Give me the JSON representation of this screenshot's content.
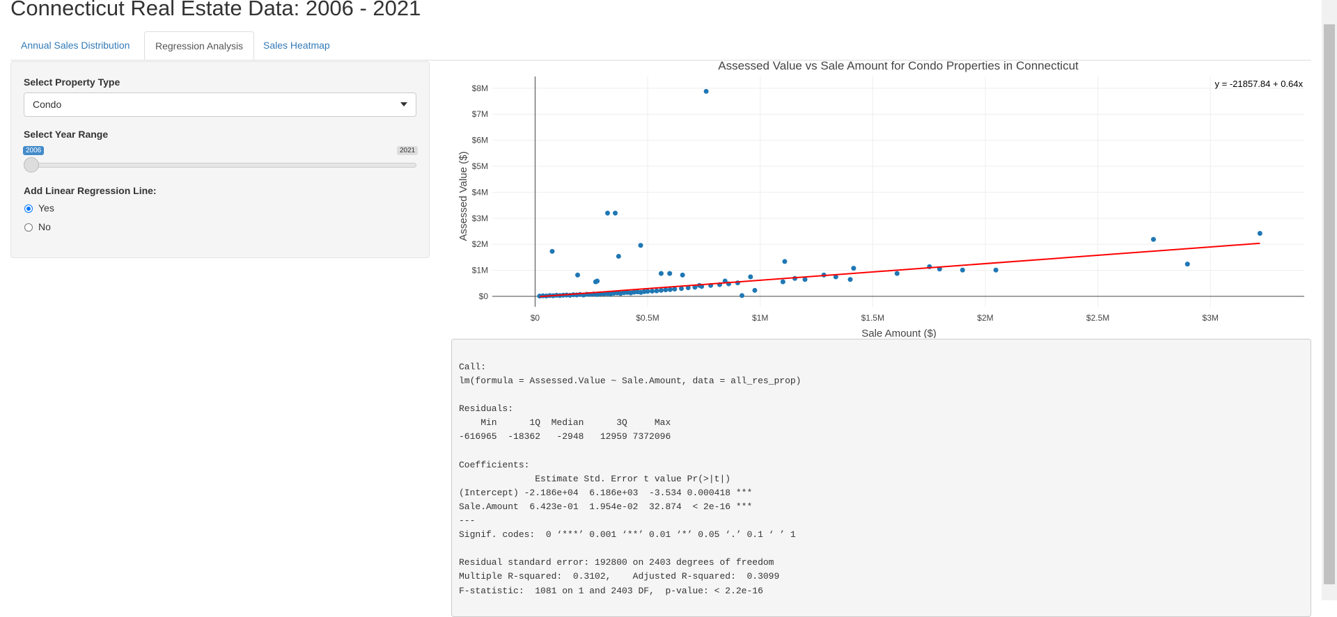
{
  "header": {
    "title": "Connecticut Real Estate Data: 2006 - 2021"
  },
  "tabs": {
    "items": [
      "Annual Sales Distribution",
      "Regression Analysis",
      "Sales Heatmap"
    ],
    "active": 1
  },
  "sidebar": {
    "property_label": "Select Property Type",
    "property_value": "Condo",
    "year_label": "Select Year Range",
    "year_min": 2006,
    "year_max": 2021,
    "year_value": 2006,
    "regression_label": "Add Linear Regression Line:",
    "options": [
      "Yes",
      "No"
    ],
    "selected": 0
  },
  "chart_data": {
    "type": "scatter",
    "title": "Assessed Value vs Sale Amount for Condo Properties in Connecticut",
    "x_label": "Sale Amount ($)",
    "y_label": "Assessed Value ($)",
    "annotation": "y = -21857.84 + 0.64x",
    "color": "#1f77b4",
    "grid": true,
    "zeroline": true,
    "regression": {
      "intercept": -21857.84,
      "slope": 0.64,
      "color": "#ff0000"
    },
    "xlim": [
      -190000,
      3417000
    ],
    "ylim": [
      -400000,
      8450000
    ],
    "xticks": [
      {
        "value": 0,
        "label": "$0"
      },
      {
        "value": 500000,
        "label": "$0.5M"
      },
      {
        "value": 1000000,
        "label": "$1M"
      },
      {
        "value": 1500000,
        "label": "$1.5M"
      },
      {
        "value": 2000000,
        "label": "$2M"
      },
      {
        "value": 2500000,
        "label": "$2.5M"
      },
      {
        "value": 3000000,
        "label": "$3M"
      }
    ],
    "yticks": [
      {
        "value": 0,
        "label": "$0"
      },
      {
        "value": 1000000,
        "label": "$1M"
      },
      {
        "value": 2000000,
        "label": "$2M"
      },
      {
        "value": 3000000,
        "label": "$3M"
      },
      {
        "value": 4000000,
        "label": "$4M"
      },
      {
        "value": 5000000,
        "label": "$5M"
      },
      {
        "value": 6000000,
        "label": "$6M"
      },
      {
        "value": 7000000,
        "label": "$7M"
      },
      {
        "value": 8000000,
        "label": "$8M"
      }
    ],
    "x": [
      760000,
      322000,
      356000,
      76000,
      469000,
      371000,
      189000,
      1109000,
      2747000,
      3220000,
      2898000,
      2047000,
      1899000,
      1797000,
      1752000,
      1608000,
      1415000,
      1400000,
      1336000,
      1283000,
      1199000,
      1154000,
      1101000,
      976000,
      919000,
      957000,
      844000,
      730000,
      655000,
      560000,
      598000,
      276000,
      269000,
      20000,
      35000,
      50000,
      65000,
      80000,
      95000,
      110000,
      125000,
      140000,
      155000,
      170000,
      185000,
      200000,
      215000,
      230000,
      245000,
      260000,
      275000,
      290000,
      305000,
      320000,
      335000,
      350000,
      365000,
      380000,
      395000,
      410000,
      425000,
      440000,
      455000,
      470000,
      485000,
      500000,
      520000,
      540000,
      560000,
      580000,
      600000,
      620000,
      650000,
      680000,
      710000,
      740000,
      780000,
      820000,
      860000,
      900000
    ],
    "values": [
      7880000,
      3200000,
      3200000,
      1730000,
      1960000,
      1540000,
      820000,
      1340000,
      2190000,
      2420000,
      1240000,
      1010000,
      1010000,
      1050000,
      1140000,
      880000,
      1080000,
      650000,
      750000,
      820000,
      650000,
      690000,
      560000,
      230000,
      30000,
      750000,
      590000,
      420000,
      820000,
      880000,
      880000,
      590000,
      560000,
      10000,
      20000,
      15000,
      30000,
      25000,
      40000,
      30000,
      45000,
      50000,
      40000,
      60000,
      55000,
      70000,
      50000,
      80000,
      75000,
      90000,
      70000,
      100000,
      95000,
      110000,
      85000,
      120000,
      130000,
      110000,
      140000,
      150000,
      130000,
      160000,
      170000,
      150000,
      180000,
      190000,
      200000,
      210000,
      230000,
      250000,
      260000,
      280000,
      300000,
      330000,
      350000,
      380000,
      420000,
      450000,
      480000,
      520000
    ]
  },
  "summary": {
    "blocks": [
      [
        "Call:",
        "lm(formula = Assessed.Value ~ Sale.Amount, data = all_res_prop)"
      ],
      [
        "Residuals:",
        "    Min      1Q  Median      3Q     Max",
        "-616965  -18362   -2948   12959 7372096"
      ],
      [
        "Coefficients:",
        "              Estimate Std. Error t value Pr(>|t|)",
        "(Intercept) -2.186e+04  6.186e+03  -3.534 0.000418 ***",
        "Sale.Amount  6.423e-01  1.954e-02  32.874  < 2e-16 ***",
        "---",
        "Signif. codes:  0 ‘***’ 0.001 ‘**’ 0.01 ‘*’ 0.05 ‘.’ 0.1 ‘ ’ 1"
      ],
      [
        "Residual standard error: 192800 on 2403 degrees of freedom",
        "Multiple R-squared:  0.3102,\tAdjusted R-squared:  0.3099",
        "F-statistic:  1081 on 1 and 2403 DF,  p-value: < 2.2e-16"
      ]
    ]
  }
}
